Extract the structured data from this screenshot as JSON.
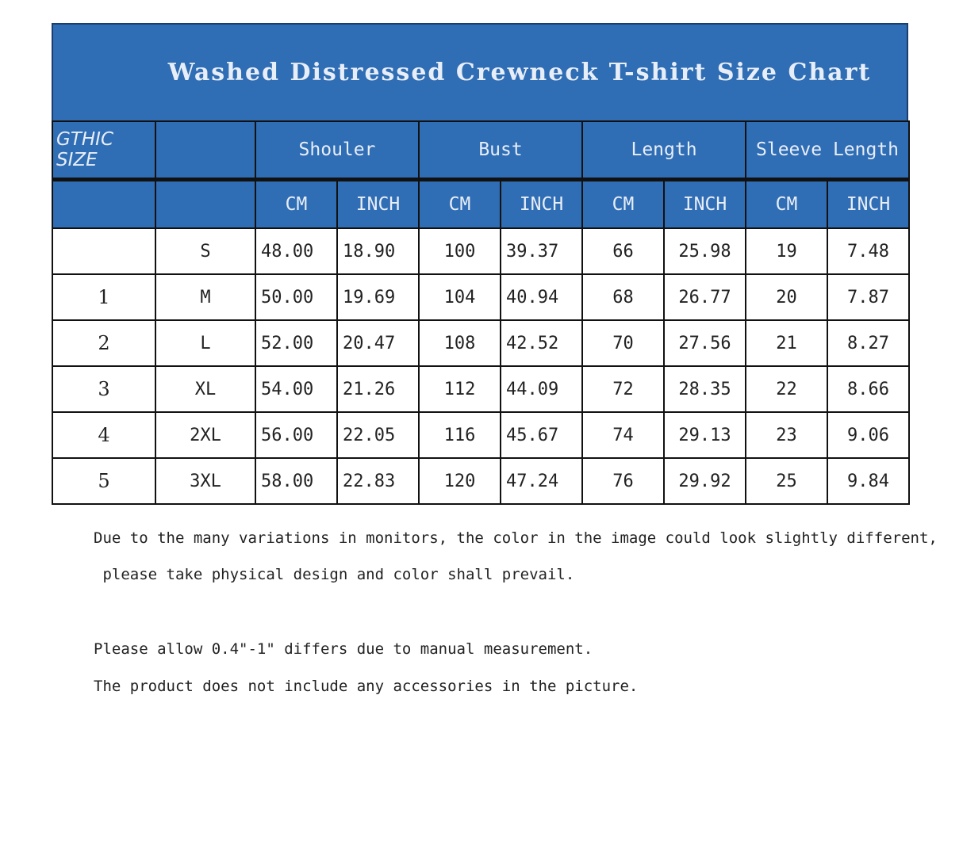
{
  "title": "Washed Distressed Crewneck T-shirt Size Chart",
  "header": {
    "size_label": "GTHIC SIZE",
    "groups": [
      "Shouler",
      "Bust",
      "Length",
      "Sleeve Length"
    ],
    "units": [
      "CM",
      "INCH",
      "CM",
      "INCH",
      "CM",
      "INCH",
      "CM",
      "INCH"
    ]
  },
  "rows": [
    {
      "num": "",
      "size": "S",
      "values": [
        "48.00",
        "18.90",
        "100",
        "39.37",
        "66",
        "25.98",
        "19",
        "7.48"
      ]
    },
    {
      "num": "1",
      "size": "M",
      "values": [
        "50.00",
        "19.69",
        "104",
        "40.94",
        "68",
        "26.77",
        "20",
        "7.87"
      ]
    },
    {
      "num": "2",
      "size": "L",
      "values": [
        "52.00",
        "20.47",
        "108",
        "42.52",
        "70",
        "27.56",
        "21",
        "8.27"
      ]
    },
    {
      "num": "3",
      "size": "XL",
      "values": [
        "54.00",
        "21.26",
        "112",
        "44.09",
        "72",
        "28.35",
        "22",
        "8.66"
      ]
    },
    {
      "num": "4",
      "size": "2XL",
      "values": [
        "56.00",
        "22.05",
        "116",
        "45.67",
        "74",
        "29.13",
        "23",
        "9.06"
      ]
    },
    {
      "num": "5",
      "size": "3XL",
      "values": [
        "58.00",
        "22.83",
        "120",
        "47.24",
        "76",
        "29.92",
        "25",
        "9.84"
      ]
    }
  ],
  "notes": [
    "Due to the many variations in monitors, the color in the image could look slightly different,",
    " please take physical design and color shall prevail.",
    "Please allow 0.4\"-1\" differs due to manual measurement.",
    "The product does not include any accessories in the picture."
  ],
  "colors": {
    "header_bg": "#2f6db5",
    "header_text": "#e8eef7"
  }
}
